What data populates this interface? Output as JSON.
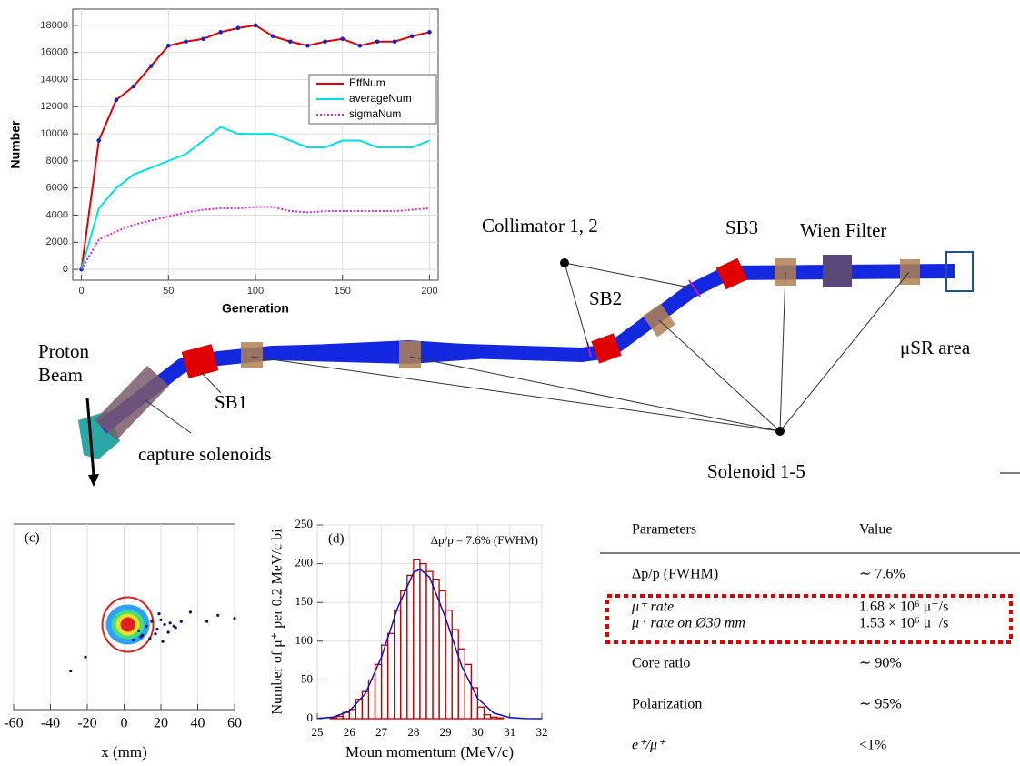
{
  "chart_data": [
    {
      "type": "line",
      "xlabel": "Generation",
      "ylabel": "Number",
      "x": [
        0,
        10,
        20,
        30,
        40,
        50,
        60,
        70,
        80,
        90,
        100,
        110,
        120,
        130,
        140,
        150,
        160,
        170,
        180,
        190,
        200
      ],
      "series": [
        {
          "name": "EffNum",
          "color": "#e00000",
          "markers": true,
          "values": [
            0,
            9500,
            12500,
            13500,
            15000,
            16500,
            16800,
            17000,
            17500,
            17800,
            18000,
            17200,
            16800,
            16500,
            16800,
            17000,
            16500,
            16800,
            16800,
            17200,
            17500
          ]
        },
        {
          "name": "averageNum",
          "color": "#00e0e8",
          "values": [
            0,
            4500,
            6000,
            7000,
            7500,
            8000,
            8500,
            9500,
            10500,
            10000,
            10000,
            10000,
            9500,
            9000,
            9000,
            9500,
            9500,
            9000,
            9000,
            9000,
            9500
          ]
        },
        {
          "name": "sigmaNum",
          "color": "#e020e0",
          "dash": true,
          "values": [
            0,
            2200,
            2800,
            3300,
            3600,
            3900,
            4200,
            4400,
            4500,
            4500,
            4600,
            4600,
            4300,
            4200,
            4300,
            4300,
            4300,
            4300,
            4300,
            4400,
            4500
          ]
        }
      ],
      "xlim": [
        -5,
        205
      ],
      "xticks": [
        0,
        50,
        100,
        150,
        200
      ],
      "ylim": [
        -800,
        19200
      ],
      "yticks": [
        0,
        2000,
        4000,
        6000,
        8000,
        10000,
        12000,
        14000,
        16000,
        18000
      ],
      "grid": true
    },
    {
      "type": "scatter",
      "label": "(c)",
      "xlabel": "x (mm)",
      "color": "#101060",
      "x": [
        -29,
        -21,
        8,
        12,
        15,
        18,
        20,
        22,
        25,
        28,
        31,
        10,
        14,
        17,
        24,
        27,
        36,
        45,
        51,
        60,
        5,
        9,
        19,
        21
      ],
      "y": [
        -35,
        -26,
        -9,
        -6,
        -3,
        -8,
        -2,
        -5,
        -4,
        -7,
        -3,
        -12,
        -14,
        -11,
        -10,
        -6,
        3,
        -3,
        1,
        -1,
        -15,
        -13,
        2,
        -16
      ],
      "xlim": [
        -60,
        60
      ],
      "xticks": [
        -60,
        -40,
        -20,
        0,
        20,
        40,
        60
      ],
      "ylim": [
        -60,
        60
      ],
      "grid": true
    },
    {
      "type": "histogram",
      "label": "(d)",
      "annotation": "Δp/p = 7.6%  (FWHM)",
      "xlabel": "Moun momentum (MeV/c)",
      "ylabel": "Number of μ⁺ per 0.2 MeV/c bi",
      "color": "#c00000",
      "bins": [
        25.4,
        25.6,
        25.8,
        26.0,
        26.2,
        26.4,
        26.6,
        26.8,
        27.0,
        27.2,
        27.4,
        27.6,
        27.8,
        28.0,
        28.2,
        28.4,
        28.6,
        28.8,
        29.0,
        29.2,
        29.4,
        29.6,
        29.8,
        30.0,
        30.2,
        30.4,
        30.6,
        30.8
      ],
      "values": [
        1,
        3,
        8,
        12,
        25,
        35,
        50,
        70,
        95,
        110,
        140,
        165,
        185,
        205,
        200,
        190,
        180,
        165,
        140,
        115,
        90,
        70,
        40,
        15,
        5,
        2,
        1
      ],
      "fit": {
        "color": "#1010c0",
        "x": [
          25,
          25.5,
          26,
          26.5,
          27,
          27.5,
          28,
          28.2,
          28.5,
          29,
          29.5,
          30,
          30.5,
          31,
          31.5,
          32
        ],
        "y": [
          0.3,
          2.1,
          9.7,
          32.4,
          79.3,
          142.7,
          188.3,
          193,
          182.5,
          130,
          68,
          26.1,
          7.3,
          1.5,
          0.2,
          0
        ]
      },
      "xlim": [
        25,
        32
      ],
      "xticks": [
        25,
        26,
        27,
        28,
        29,
        30,
        31,
        32
      ],
      "ylim": [
        0,
        250
      ],
      "yticks": [
        0,
        50,
        100,
        150,
        200,
        250
      ],
      "grid": true
    }
  ],
  "diagram": {
    "labels": {
      "proton": "Proton",
      "beam": "Beam",
      "sb1": "SB1",
      "sb2": "SB2",
      "sb3": "SB3",
      "capture": "capture solenoids",
      "collimator": "Collimator 1, 2",
      "wien": "Wien Filter",
      "musr": "μSR area",
      "solenoid": "Solenoid 1-5"
    }
  },
  "table": {
    "header": [
      "Parameters",
      "Value"
    ],
    "rows": [
      [
        "Δp/p (FWHM)",
        "∼ 7.6%"
      ],
      [
        "μ⁺ rate",
        "1.68 × 10⁶ μ⁺/s"
      ],
      [
        "μ⁺ rate on Ø30 mm",
        "1.53 × 10⁶ μ⁺/s"
      ],
      [
        "Core ratio",
        "∼ 90%"
      ],
      [
        "Polarization",
        "∼ 95%"
      ],
      [
        "e⁺/μ⁺",
        "<1%"
      ]
    ]
  }
}
